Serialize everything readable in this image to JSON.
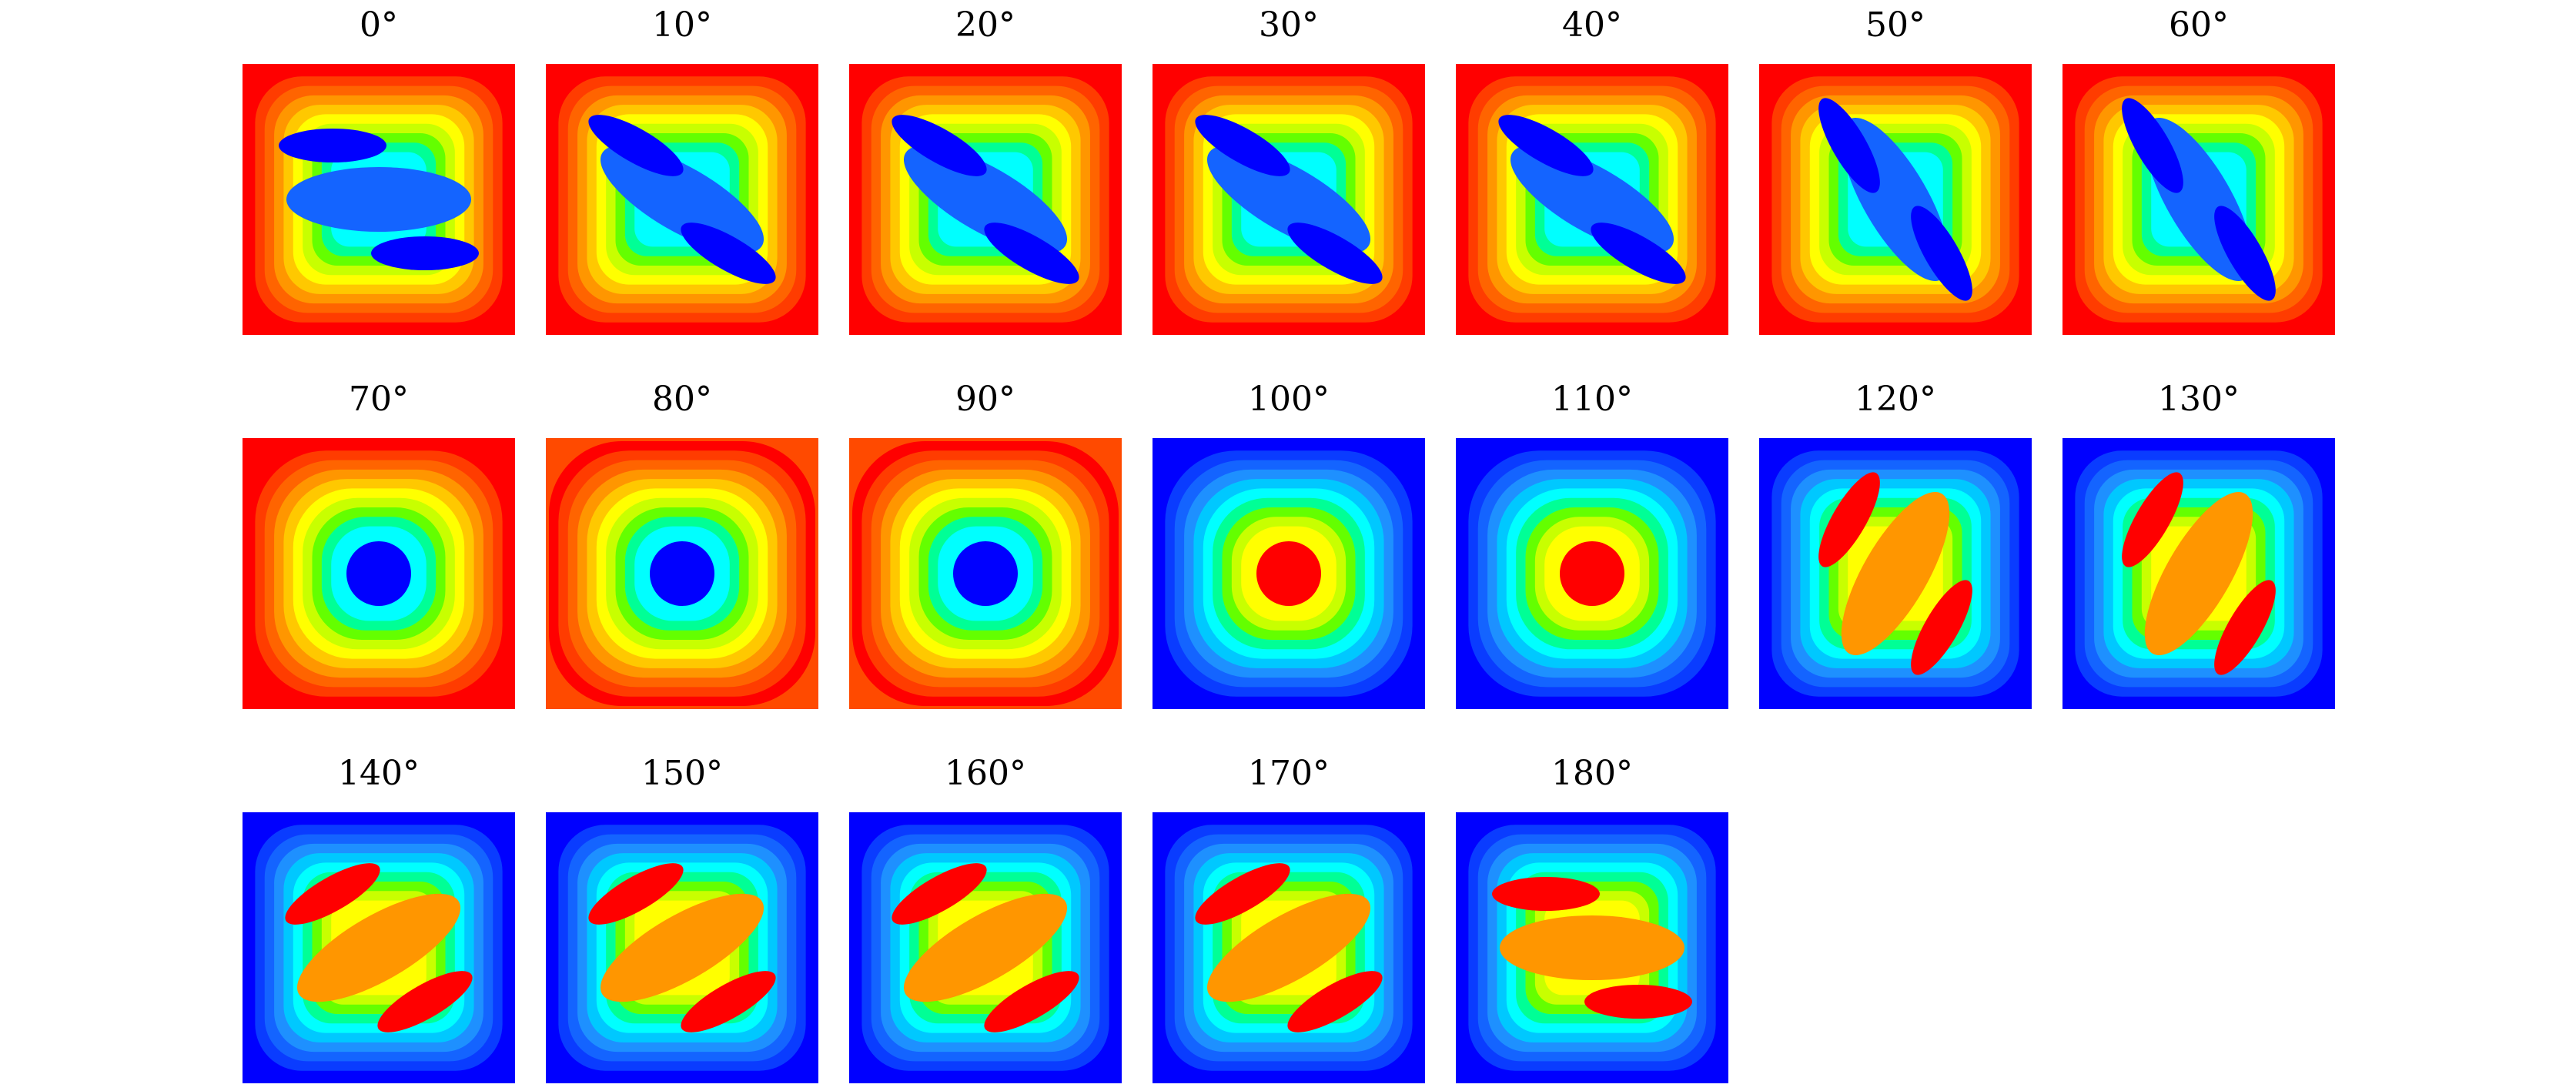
{
  "figure": {
    "panels": [
      {
        "label": "0°",
        "angle": 0
      },
      {
        "label": "10°",
        "angle": 10
      },
      {
        "label": "20°",
        "angle": 20
      },
      {
        "label": "30°",
        "angle": 30
      },
      {
        "label": "40°",
        "angle": 40
      },
      {
        "label": "50°",
        "angle": 50
      },
      {
        "label": "60°",
        "angle": 60
      },
      {
        "label": "70°",
        "angle": 70
      },
      {
        "label": "80°",
        "angle": 80
      },
      {
        "label": "90°",
        "angle": 90
      },
      {
        "label": "100°",
        "angle": 100
      },
      {
        "label": "110°",
        "angle": 110
      },
      {
        "label": "120°",
        "angle": 120
      },
      {
        "label": "130°",
        "angle": 130
      },
      {
        "label": "140°",
        "angle": 140
      },
      {
        "label": "150°",
        "angle": 150
      },
      {
        "label": "160°",
        "angle": 160
      },
      {
        "label": "170°",
        "angle": 170
      },
      {
        "label": "180°",
        "angle": 180
      }
    ],
    "colormap": [
      "#0000ff",
      "#0a3cff",
      "#1464ff",
      "#1e90ff",
      "#00c8ff",
      "#00ffff",
      "#00ff96",
      "#64ff00",
      "#c8ff00",
      "#ffff00",
      "#ffc800",
      "#ff9600",
      "#ff6400",
      "#ff3c00",
      "#ff0000"
    ]
  }
}
